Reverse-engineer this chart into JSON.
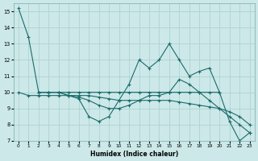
{
  "xlabel": "Humidex (Indice chaleur)",
  "xlim": [
    -0.5,
    23.5
  ],
  "ylim": [
    7,
    15.5
  ],
  "yticks": [
    7,
    8,
    9,
    10,
    11,
    12,
    13,
    14,
    15
  ],
  "xticks": [
    0,
    1,
    2,
    3,
    4,
    5,
    6,
    7,
    8,
    9,
    10,
    11,
    12,
    13,
    14,
    15,
    16,
    17,
    18,
    19,
    20,
    21,
    22,
    23
  ],
  "bg_color": "#cce8e8",
  "line_color": "#1c6b6b",
  "grid_color": "#aacfcf",
  "line1_x": [
    0,
    1,
    2,
    3,
    4,
    5,
    6,
    7,
    8,
    9,
    10,
    11,
    12,
    13,
    14,
    15,
    16,
    17,
    18,
    19,
    20
  ],
  "line1_y": [
    15.2,
    13.4,
    10.0,
    10.0,
    10.0,
    10.0,
    10.0,
    10.0,
    10.0,
    10.0,
    10.0,
    10.0,
    10.0,
    10.0,
    10.0,
    10.0,
    10.0,
    10.0,
    10.0,
    10.0,
    10.0
  ],
  "line2_x": [
    2,
    3,
    4,
    5,
    6,
    7,
    8,
    9,
    10,
    11,
    12,
    13,
    14,
    15,
    16,
    17,
    18,
    19,
    20,
    21,
    22,
    23
  ],
  "line2_y": [
    10.0,
    10.0,
    10.0,
    9.8,
    9.6,
    8.5,
    8.2,
    8.5,
    9.5,
    10.5,
    12.0,
    11.5,
    12.0,
    13.0,
    12.0,
    11.0,
    11.3,
    11.5,
    10.0,
    8.2,
    7.0,
    7.5
  ],
  "line3_x": [
    2,
    3,
    4,
    5,
    6,
    7,
    8,
    9,
    10,
    11,
    12,
    13,
    14,
    15,
    16,
    17,
    18,
    19,
    20,
    21,
    22,
    23
  ],
  "line3_y": [
    10.0,
    10.0,
    10.0,
    9.8,
    9.7,
    9.5,
    9.2,
    9.0,
    9.0,
    9.2,
    9.5,
    9.8,
    9.8,
    10.0,
    10.8,
    10.5,
    10.0,
    9.5,
    9.0,
    8.5,
    8.0,
    7.5
  ],
  "line4_x": [
    0,
    1,
    2,
    3,
    4,
    5,
    6,
    7,
    8,
    9,
    10,
    11,
    12,
    13,
    14,
    15,
    16,
    17,
    18,
    19,
    20,
    21,
    22,
    23
  ],
  "line4_y": [
    10.0,
    9.8,
    9.8,
    9.8,
    9.8,
    9.8,
    9.8,
    9.8,
    9.7,
    9.6,
    9.5,
    9.5,
    9.5,
    9.5,
    9.5,
    9.5,
    9.4,
    9.3,
    9.2,
    9.1,
    9.0,
    8.8,
    8.5,
    8.0
  ]
}
